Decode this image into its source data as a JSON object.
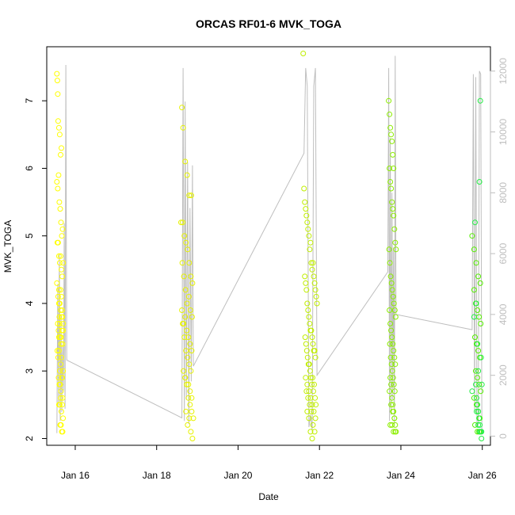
{
  "chart_data": {
    "type": "scatter",
    "title": "ORCAS RF01-6 MVK_TOGA",
    "xlabel": "Date",
    "ylabel": "MVK_TOGA",
    "x_ticks": [
      "Jan 16",
      "Jan 18",
      "Jan 20",
      "Jan 22",
      "Jan 24",
      "Jan 26"
    ],
    "x_tick_values": [
      16,
      18,
      20,
      22,
      24,
      26
    ],
    "xlim": [
      15.3,
      26.2
    ],
    "ylim": [
      1.9,
      7.8
    ],
    "y_ticks": [
      "2",
      "3",
      "4",
      "5",
      "6",
      "7"
    ],
    "y_tick_values": [
      2,
      3,
      4,
      5,
      6,
      7
    ],
    "y2lim": [
      -300,
      12800
    ],
    "y2_ticks": [
      "0",
      "2000",
      "4000",
      "6000",
      "8000",
      "10000",
      "12000"
    ],
    "y2_tick_values": [
      0,
      2000,
      4000,
      6000,
      8000,
      10000,
      12000
    ],
    "grid": false,
    "colors": {
      "flight1": "#ffff00",
      "flight2": "#e6f200",
      "flight3": "#c0ee00",
      "flight4": "#8cee00",
      "flight5": "#55ee00",
      "flight6": "#22ee44",
      "altitude_line": "#bebebe",
      "right_axis": "#bebebe"
    },
    "series": [
      {
        "x": [
          15.55,
          15.56,
          15.57,
          15.58,
          15.6,
          15.62,
          15.64,
          15.66,
          15.55,
          15.57,
          15.59,
          15.61,
          15.63,
          15.65,
          15.67,
          15.69,
          15.56,
          15.58,
          15.6,
          15.62,
          15.64,
          15.66,
          15.68,
          15.7,
          15.55,
          15.58,
          15.6,
          15.62,
          15.64,
          15.66,
          15.68,
          15.7,
          15.57,
          15.59,
          15.61,
          15.63,
          15.65,
          15.67,
          15.69,
          15.56,
          15.58,
          15.6,
          15.62,
          15.64,
          15.66,
          15.68,
          15.7,
          15.59,
          15.61,
          15.63,
          15.65,
          15.67,
          15.69,
          15.6,
          15.62,
          15.64,
          15.66,
          15.68,
          15.7,
          15.63,
          15.65,
          15.67,
          15.69,
          15.6,
          15.64,
          15.68,
          15.62,
          15.66,
          15.7,
          15.6,
          15.65
        ],
        "y": [
          7.4,
          7.3,
          7.1,
          6.7,
          6.6,
          6.5,
          6.2,
          6.3,
          5.8,
          5.7,
          5.9,
          5.5,
          5.4,
          5.2,
          5.0,
          5.1,
          4.9,
          4.9,
          4.7,
          4.6,
          4.7,
          4.5,
          4.4,
          4.6,
          4.3,
          4.1,
          4.2,
          4.0,
          3.9,
          4.1,
          3.8,
          3.7,
          3.7,
          3.6,
          3.8,
          3.5,
          3.5,
          3.6,
          3.4,
          3.3,
          3.2,
          3.3,
          3.0,
          3.1,
          3.2,
          2.9,
          3.0,
          2.9,
          2.8,
          2.8,
          2.7,
          2.9,
          2.6,
          2.5,
          2.5,
          2.6,
          2.4,
          2.5,
          2.3,
          2.2,
          2.2,
          2.1,
          2.1,
          4.0,
          4.2,
          3.9,
          3.7,
          3.8,
          3.6,
          3.5,
          3.4
        ]
      },
      {
        "x": [
          18.62,
          18.65,
          18.7,
          18.75,
          18.8,
          18.85,
          18.6,
          18.64,
          18.68,
          18.72,
          18.76,
          18.8,
          18.84,
          18.88,
          18.63,
          18.67,
          18.71,
          18.75,
          18.79,
          18.83,
          18.87,
          18.62,
          18.66,
          18.7,
          18.74,
          18.78,
          18.82,
          18.86,
          18.64,
          18.68,
          18.72,
          18.76,
          18.8,
          18.84,
          18.66,
          18.7,
          18.74,
          18.78,
          18.82,
          18.86,
          18.7,
          18.74,
          18.78,
          18.82,
          18.86,
          18.9,
          18.72,
          18.76,
          18.8,
          18.84,
          18.88
        ],
        "y": [
          6.9,
          6.6,
          6.1,
          5.9,
          5.6,
          5.6,
          5.2,
          5.2,
          5.0,
          4.9,
          4.8,
          4.6,
          4.4,
          4.3,
          4.6,
          4.4,
          4.2,
          4.0,
          4.1,
          3.9,
          3.8,
          3.9,
          3.7,
          3.8,
          3.6,
          3.5,
          3.4,
          3.3,
          3.7,
          3.5,
          3.3,
          3.2,
          3.1,
          3.0,
          3.0,
          2.9,
          2.8,
          2.8,
          2.7,
          2.6,
          2.9,
          2.8,
          2.6,
          2.5,
          2.4,
          2.3,
          2.4,
          2.2,
          2.3,
          2.1,
          2.0
        ]
      },
      {
        "x": [
          21.6,
          21.62,
          21.64,
          21.66,
          21.68,
          21.7,
          21.72,
          21.74,
          21.76,
          21.78,
          21.8,
          21.82,
          21.84,
          21.86,
          21.88,
          21.9,
          21.92,
          21.94,
          21.64,
          21.66,
          21.68,
          21.7,
          21.72,
          21.74,
          21.76,
          21.78,
          21.8,
          21.82,
          21.84,
          21.86,
          21.88,
          21.9,
          21.65,
          21.67,
          21.69,
          21.71,
          21.73,
          21.75,
          21.77,
          21.79,
          21.81,
          21.83,
          21.85,
          21.87,
          21.89,
          21.91,
          21.66,
          21.7,
          21.74,
          21.78,
          21.82,
          21.86,
          21.9,
          21.68,
          21.72,
          21.76,
          21.8,
          21.84,
          21.88,
          21.7,
          21.74,
          21.78,
          21.82
        ],
        "y": [
          7.7,
          5.7,
          5.5,
          5.4,
          5.3,
          5.2,
          5.1,
          5.0,
          4.8,
          4.9,
          4.6,
          4.5,
          4.6,
          4.4,
          4.3,
          4.2,
          4.1,
          4.0,
          4.4,
          4.3,
          4.2,
          4.0,
          3.9,
          3.8,
          3.7,
          3.6,
          3.6,
          3.5,
          3.4,
          3.3,
          3.3,
          3.2,
          3.5,
          3.4,
          3.3,
          3.2,
          3.1,
          3.1,
          3.0,
          2.9,
          2.8,
          2.9,
          2.7,
          2.8,
          2.6,
          2.5,
          2.9,
          2.8,
          2.7,
          2.6,
          2.5,
          2.4,
          2.3,
          2.7,
          2.6,
          2.5,
          2.4,
          2.2,
          2.1,
          2.4,
          2.3,
          2.1,
          2.0
        ]
      },
      {
        "x": [
          23.7,
          23.72,
          23.74,
          23.76,
          23.78,
          23.8,
          23.82,
          23.72,
          23.74,
          23.76,
          23.78,
          23.8,
          23.82,
          23.84,
          23.86,
          23.88,
          23.71,
          23.73,
          23.75,
          23.77,
          23.79,
          23.81,
          23.83,
          23.85,
          23.87,
          23.72,
          23.74,
          23.76,
          23.78,
          23.8,
          23.82,
          23.84,
          23.86,
          23.73,
          23.75,
          23.77,
          23.79,
          23.81,
          23.83,
          23.85,
          23.74,
          23.76,
          23.78,
          23.8,
          23.82,
          23.84,
          23.86,
          23.88,
          23.72,
          23.76,
          23.8,
          23.84,
          23.74,
          23.78,
          23.82,
          23.86
        ],
        "y": [
          7.0,
          6.8,
          6.6,
          6.5,
          6.4,
          6.2,
          6.0,
          6.0,
          5.8,
          5.7,
          5.5,
          5.4,
          5.3,
          5.1,
          4.9,
          4.8,
          4.8,
          4.6,
          4.4,
          4.3,
          4.2,
          4.1,
          4.0,
          3.9,
          3.8,
          3.9,
          3.7,
          3.6,
          3.5,
          3.4,
          3.3,
          3.2,
          3.1,
          3.4,
          3.2,
          3.1,
          3.0,
          2.9,
          2.8,
          2.7,
          2.9,
          2.8,
          2.6,
          2.5,
          2.4,
          2.3,
          2.2,
          2.1,
          2.7,
          2.5,
          2.4,
          2.3,
          2.2,
          2.2,
          2.1,
          2.1
        ]
      },
      {
        "x": [
          25.75,
          25.8,
          25.85,
          25.9,
          25.95,
          25.8,
          25.84,
          25.88,
          25.92,
          25.96,
          25.82,
          25.86,
          25.9,
          25.94,
          25.84,
          25.88,
          25.92,
          25.96,
          25.8,
          25.86,
          25.9,
          25.94,
          25.82,
          25.88,
          25.92
        ],
        "y": [
          5.0,
          4.8,
          4.6,
          4.4,
          4.3,
          4.2,
          4.0,
          3.9,
          3.8,
          3.7,
          3.5,
          3.4,
          3.3,
          3.2,
          3.0,
          2.9,
          2.8,
          2.7,
          2.6,
          2.5,
          2.4,
          2.3,
          2.2,
          2.1,
          2.1
        ]
      },
      {
        "x": [
          25.75,
          25.8,
          25.82,
          25.85,
          25.88,
          25.9,
          25.93,
          25.95,
          25.97,
          25.99,
          25.84,
          25.86,
          25.88,
          25.9,
          25.92,
          25.94,
          25.96,
          25.98,
          25.86,
          25.9,
          25.94,
          25.98
        ],
        "y": [
          2.7,
          3.8,
          5.2,
          4.0,
          3.4,
          3.0,
          5.8,
          7.0,
          3.2,
          2.8,
          2.8,
          2.6,
          2.5,
          2.4,
          2.3,
          2.2,
          2.1,
          2.0,
          2.4,
          2.2,
          2.1,
          2.1
        ]
      }
    ],
    "altitude": {
      "flights": [
        {
          "x": [
            15.55,
            15.57,
            15.59,
            15.61,
            15.63,
            15.65,
            15.67,
            15.69,
            15.71,
            15.73,
            15.75,
            15.77,
            15.79
          ],
          "y": [
            100,
            5000,
            1000,
            6000,
            500,
            4000,
            800,
            3000,
            1500,
            7000,
            900,
            12200,
            2500
          ]
        },
        {
          "x": [
            18.62,
            18.65,
            18.68,
            18.7,
            18.73,
            18.76,
            18.79,
            18.82,
            18.85,
            18.88,
            18.9
          ],
          "y": [
            600,
            12100,
            500,
            11000,
            1200,
            9000,
            400,
            7500,
            1800,
            8900,
            2300
          ]
        },
        {
          "x": [
            21.62,
            21.66,
            21.7,
            21.74,
            21.78,
            21.82,
            21.86,
            21.9,
            21.94
          ],
          "y": [
            9300,
            12100,
            11500,
            300,
            700,
            200,
            11500,
            12100,
            2000
          ]
        },
        {
          "x": [
            23.68,
            23.7,
            23.72,
            23.74,
            23.76,
            23.78,
            23.8,
            23.82,
            23.84,
            23.86,
            23.88
          ],
          "y": [
            5400,
            12100,
            500,
            9800,
            700,
            8000,
            1200,
            6200,
            400,
            12500,
            4000
          ]
        },
        {
          "x": [
            25.75,
            25.78,
            25.81,
            25.84,
            25.87,
            25.9,
            25.93,
            25.96,
            25.99
          ],
          "y": [
            3500,
            11900,
            800,
            11800,
            300,
            400,
            12000,
            11900,
            150
          ]
        }
      ]
    }
  }
}
